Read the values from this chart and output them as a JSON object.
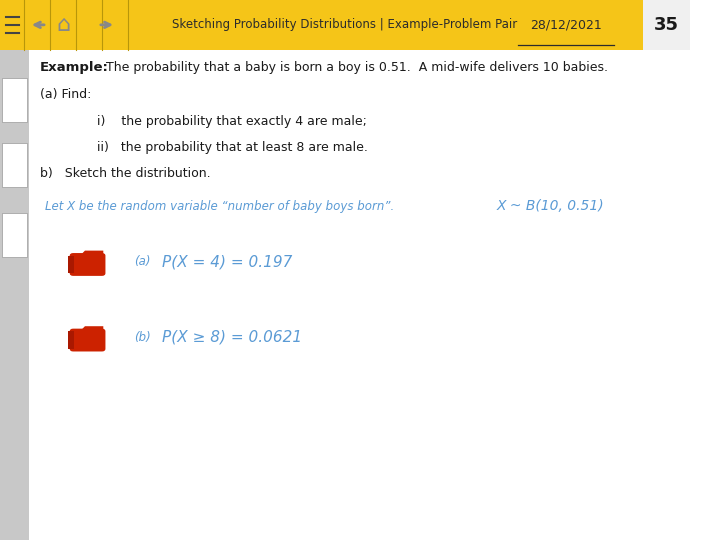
{
  "title": "Sketching Probability Distributions | Example-Problem Pair",
  "date": "28/12/2021",
  "slide_number": "35",
  "header_bg": "#f5c518",
  "header_text_color": "#2c2c2c",
  "body_bg": "#ffffff",
  "body_text_color": "#1a1a1a",
  "answer_text_color": "#5b9bd5",
  "left_panel_bg": "#c8c8c8",
  "answer_dist": "X ~ B(10, 0.51)"
}
